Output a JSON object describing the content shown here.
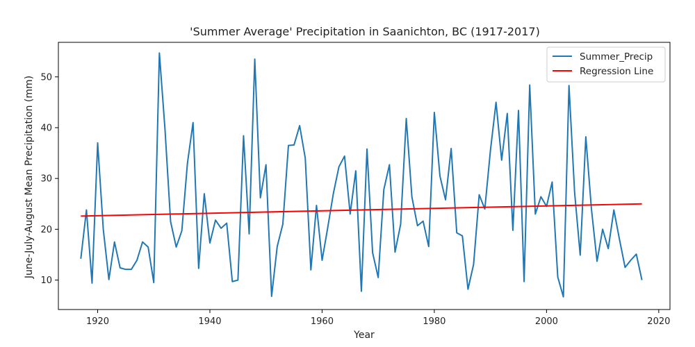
{
  "chart_data": {
    "type": "line",
    "title": "'Summer Average' Precipitation in Saanichton, BC (1917-2017)",
    "xlabel": "Year",
    "ylabel": "June-July-August Mean Precipitation (mm)",
    "xlim": [
      1913,
      2022
    ],
    "ylim": [
      4.2,
      56.8
    ],
    "xticks": [
      1920,
      1940,
      1960,
      1980,
      2000,
      2020
    ],
    "yticks": [
      10,
      20,
      30,
      40,
      50
    ],
    "grid": false,
    "legend_position": "top-right",
    "x": [
      1917,
      1918,
      1919,
      1920,
      1921,
      1922,
      1923,
      1924,
      1925,
      1926,
      1927,
      1928,
      1929,
      1930,
      1931,
      1932,
      1933,
      1934,
      1935,
      1936,
      1937,
      1938,
      1939,
      1940,
      1941,
      1942,
      1943,
      1944,
      1945,
      1946,
      1947,
      1948,
      1949,
      1950,
      1951,
      1952,
      1953,
      1954,
      1955,
      1956,
      1957,
      1958,
      1959,
      1960,
      1961,
      1962,
      1963,
      1964,
      1965,
      1966,
      1967,
      1968,
      1969,
      1970,
      1971,
      1972,
      1973,
      1974,
      1975,
      1976,
      1977,
      1978,
      1979,
      1980,
      1981,
      1982,
      1983,
      1984,
      1985,
      1986,
      1987,
      1988,
      1989,
      1990,
      1991,
      1992,
      1993,
      1994,
      1995,
      1996,
      1997,
      1998,
      1999,
      2000,
      2001,
      2002,
      2003,
      2004,
      2005,
      2006,
      2007,
      2008,
      2009,
      2010,
      2011,
      2012,
      2013,
      2014,
      2015,
      2016,
      2017
    ],
    "series": [
      {
        "name": "Summer_Precip",
        "color": "#1f77b4",
        "values": [
          14.2,
          23.8,
          9.4,
          37.0,
          20.0,
          10.1,
          17.5,
          12.4,
          12.1,
          12.1,
          13.9,
          17.5,
          16.5,
          9.5,
          54.7,
          39.7,
          21.5,
          16.5,
          19.7,
          33.0,
          41.0,
          12.3,
          27.0,
          17.3,
          21.8,
          20.2,
          21.2,
          9.7,
          10.0,
          38.4,
          19.1,
          53.5,
          26.2,
          32.7,
          6.8,
          16.6,
          21.0,
          36.5,
          36.6,
          40.4,
          34.0,
          12.0,
          24.7,
          13.9,
          20.3,
          27.0,
          32.3,
          34.4,
          23.0,
          31.5,
          7.8,
          35.8,
          15.4,
          10.5,
          27.8,
          32.7,
          15.5,
          21.0,
          41.8,
          26.4,
          20.7,
          21.6,
          16.6,
          43.0,
          30.5,
          25.8,
          35.9,
          19.3,
          18.7,
          8.2,
          13.1,
          26.8,
          24.0,
          35.5,
          45.0,
          33.6,
          42.8,
          19.8,
          43.4,
          9.7,
          48.4,
          23.0,
          26.4,
          24.5,
          29.3,
          10.6,
          6.7,
          48.3,
          27.3,
          14.9,
          38.2,
          24.0,
          13.7,
          20.0,
          16.2,
          23.8,
          18.0,
          12.5,
          13.9,
          15.1,
          10.0
        ]
      },
      {
        "name": "Regression Line",
        "color": "#ff0000",
        "x": [
          1917,
          2017
        ],
        "values": [
          22.6,
          25.0
        ]
      }
    ]
  }
}
